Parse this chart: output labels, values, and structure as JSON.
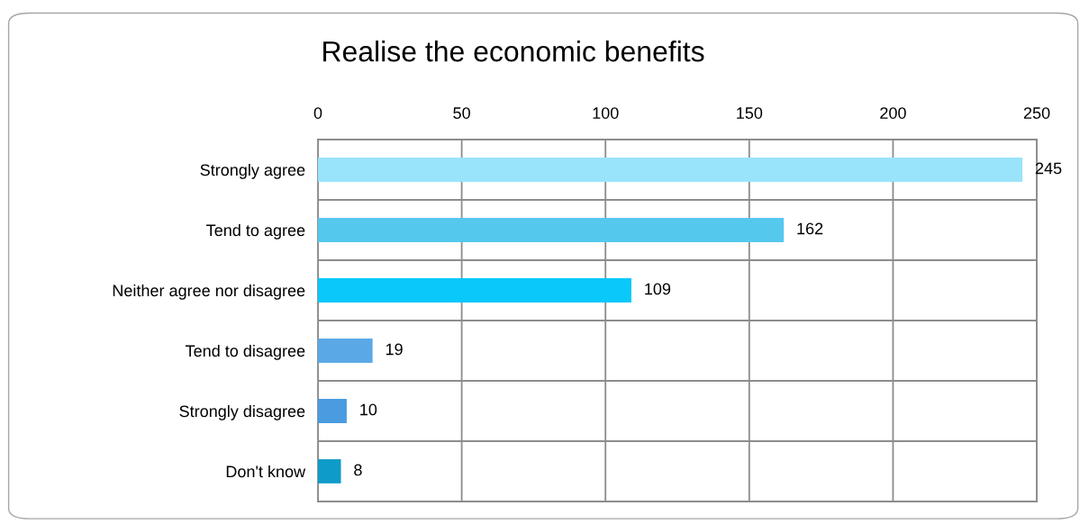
{
  "chart_data": {
    "type": "bar",
    "orientation": "horizontal",
    "title": "Realise the economic benefits",
    "categories": [
      "Strongly agree",
      "Tend to agree",
      "Neither agree nor disagree",
      "Tend to disagree",
      "Strongly disagree",
      "Don't know"
    ],
    "values": [
      245,
      162,
      109,
      19,
      10,
      8
    ],
    "colors": [
      "#99e4fb",
      "#55c8ee",
      "#0bc8fb",
      "#5aa9e6",
      "#4a9be0",
      "#0f9bc9"
    ],
    "xlim": [
      0,
      250
    ],
    "xticks": [
      0,
      50,
      100,
      150,
      200,
      250
    ],
    "grid": true,
    "data_labels": true
  }
}
